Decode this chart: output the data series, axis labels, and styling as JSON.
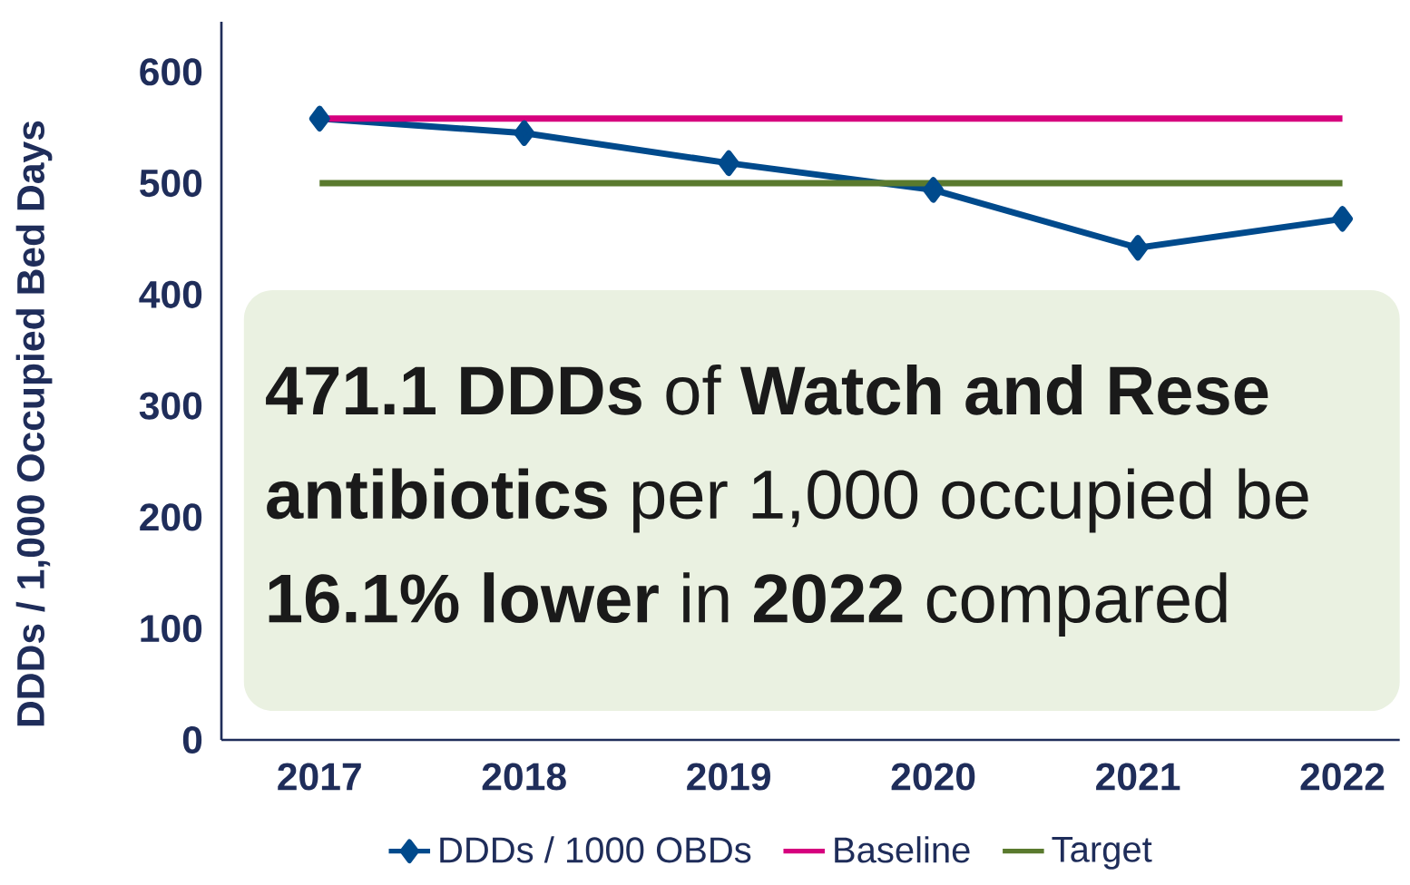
{
  "chart_data": {
    "type": "line",
    "ylabel": "DDDs / 1,000 Occupied Bed Days",
    "categories": [
      "2017",
      "2018",
      "2019",
      "2020",
      "2021",
      "2022"
    ],
    "series": [
      {
        "name": "DDDs / 1000 OBDs",
        "color": "#004a8c",
        "values": [
          558,
          545,
          518,
          494,
          442,
          468
        ]
      },
      {
        "name": "Baseline",
        "color": "#d6007e",
        "marker": "none",
        "values": [
          558,
          558,
          558,
          558,
          558,
          558
        ]
      },
      {
        "name": "Target",
        "color": "#5a7a2e",
        "marker": "none",
        "values": [
          500,
          500,
          500,
          500,
          500,
          500
        ]
      }
    ],
    "ylim": [
      0,
      645
    ],
    "yticks": [
      0,
      100,
      200,
      300,
      400,
      500,
      600
    ],
    "marker": "diamond",
    "legend": "bottom",
    "grid": false,
    "annotations": [
      "**471.1 DDDs** of **Watch and Rese**",
      "**antibiotics** per 1,000 occupied be",
      "**16.1% lower** in **2022** compared"
    ]
  }
}
